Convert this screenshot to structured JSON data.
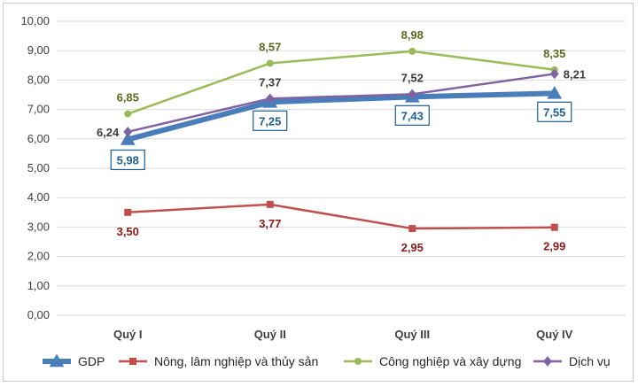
{
  "chart_data": {
    "type": "line",
    "categories": [
      "Quý I",
      "Quý II",
      "Quý III",
      "Quý IV"
    ],
    "ylim": [
      0,
      10
    ],
    "yticks": [
      "0,00",
      "1,00",
      "2,00",
      "3,00",
      "4,00",
      "5,00",
      "6,00",
      "7,00",
      "8,00",
      "9,00",
      "10,00"
    ],
    "grid": true,
    "legend_position": "bottom",
    "series": [
      {
        "name": "GDP",
        "values": [
          5.98,
          7.25,
          7.43,
          7.55
        ],
        "labels": [
          "5,98",
          "7,25",
          "7,43",
          "7,55"
        ],
        "color": "#4a7ebb",
        "label_color": "#1f5f8b",
        "marker": "triangle"
      },
      {
        "name": "Nông, lâm nghiệp và thủy sản",
        "values": [
          3.5,
          3.77,
          2.95,
          2.99
        ],
        "labels": [
          "3,50",
          "3,77",
          "2,95",
          "2,99"
        ],
        "color": "#c0504d",
        "label_color": "#8b1a1a",
        "marker": "square"
      },
      {
        "name": "Công nghiệp và xây dựng",
        "values": [
          6.85,
          8.57,
          8.98,
          8.35
        ],
        "labels": [
          "6,85",
          "8,57",
          "8,98",
          "8,35"
        ],
        "color": "#9bbb59",
        "label_color": "#5a6b1e",
        "marker": "circle"
      },
      {
        "name": "Dịch vụ",
        "values": [
          6.24,
          7.37,
          7.52,
          8.21
        ],
        "labels": [
          "6,24",
          "7,37",
          "7,52",
          "8,21"
        ],
        "color": "#8064a2",
        "label_color": "#3c3c3c",
        "marker": "diamond"
      }
    ]
  }
}
